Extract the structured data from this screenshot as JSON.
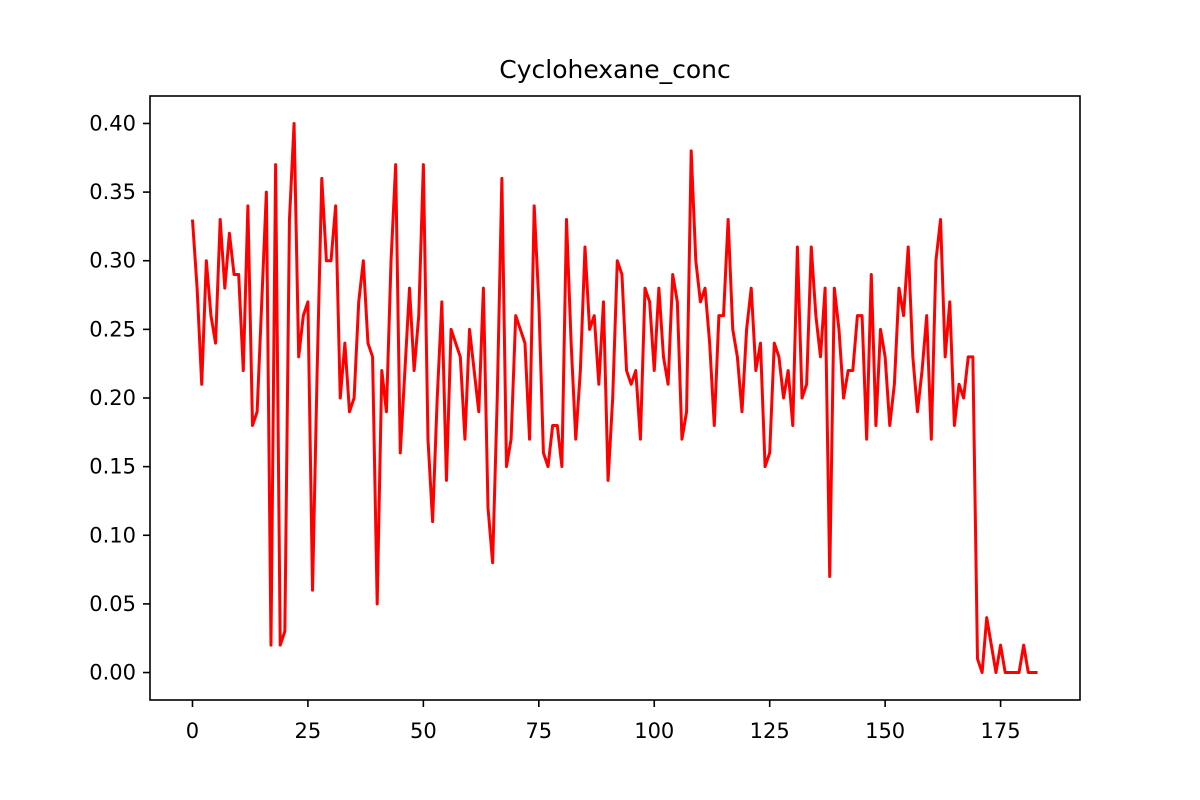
{
  "chart_data": {
    "type": "line",
    "title": "Cyclohexane_conc",
    "xlabel": "",
    "ylabel": "",
    "xlim": [
      -9.2,
      192.2
    ],
    "ylim": [
      -0.02,
      0.42
    ],
    "grid": false,
    "legend": "none",
    "line_color": "#ff0000",
    "x_ticks": [
      0,
      25,
      50,
      75,
      100,
      125,
      150,
      175
    ],
    "x_tick_labels": [
      "0",
      "25",
      "50",
      "75",
      "100",
      "125",
      "150",
      "175"
    ],
    "y_ticks": [
      0.0,
      0.05,
      0.1,
      0.15,
      0.2,
      0.25,
      0.3,
      0.35,
      0.4
    ],
    "y_tick_labels": [
      "0.00",
      "0.05",
      "0.10",
      "0.15",
      "0.20",
      "0.25",
      "0.30",
      "0.35",
      "0.40"
    ],
    "series": [
      {
        "values": [
          0.33,
          0.28,
          0.21,
          0.3,
          0.26,
          0.24,
          0.33,
          0.28,
          0.32,
          0.29,
          0.29,
          0.22,
          0.34,
          0.18,
          0.19,
          0.27,
          0.35,
          0.02,
          0.37,
          0.02,
          0.03,
          0.33,
          0.4,
          0.23,
          0.26,
          0.27,
          0.06,
          0.22,
          0.36,
          0.3,
          0.3,
          0.34,
          0.2,
          0.24,
          0.19,
          0.2,
          0.27,
          0.3,
          0.24,
          0.23,
          0.05,
          0.22,
          0.19,
          0.3,
          0.37,
          0.16,
          0.22,
          0.28,
          0.22,
          0.26,
          0.37,
          0.17,
          0.11,
          0.2,
          0.27,
          0.14,
          0.25,
          0.24,
          0.23,
          0.17,
          0.25,
          0.22,
          0.19,
          0.28,
          0.12,
          0.08,
          0.2,
          0.36,
          0.15,
          0.17,
          0.26,
          0.25,
          0.24,
          0.17,
          0.34,
          0.27,
          0.16,
          0.15,
          0.18,
          0.18,
          0.15,
          0.33,
          0.24,
          0.17,
          0.22,
          0.31,
          0.25,
          0.26,
          0.21,
          0.27,
          0.14,
          0.2,
          0.3,
          0.29,
          0.22,
          0.21,
          0.22,
          0.17,
          0.28,
          0.27,
          0.22,
          0.28,
          0.23,
          0.21,
          0.29,
          0.27,
          0.17,
          0.19,
          0.38,
          0.3,
          0.27,
          0.28,
          0.24,
          0.18,
          0.26,
          0.26,
          0.33,
          0.25,
          0.23,
          0.19,
          0.25,
          0.28,
          0.22,
          0.24,
          0.15,
          0.16,
          0.24,
          0.23,
          0.2,
          0.22,
          0.18,
          0.31,
          0.2,
          0.21,
          0.31,
          0.26,
          0.23,
          0.28,
          0.07,
          0.28,
          0.25,
          0.2,
          0.22,
          0.22,
          0.26,
          0.26,
          0.17,
          0.29,
          0.18,
          0.25,
          0.23,
          0.18,
          0.21,
          0.28,
          0.26,
          0.31,
          0.23,
          0.19,
          0.22,
          0.26,
          0.17,
          0.3,
          0.33,
          0.23,
          0.27,
          0.18,
          0.21,
          0.2,
          0.23,
          0.23,
          0.01,
          0.0,
          0.04,
          0.02,
          0.0,
          0.02,
          0.0,
          0.0,
          0.0,
          0.0,
          0.02,
          0.0,
          0.0,
          0.0
        ]
      }
    ]
  }
}
